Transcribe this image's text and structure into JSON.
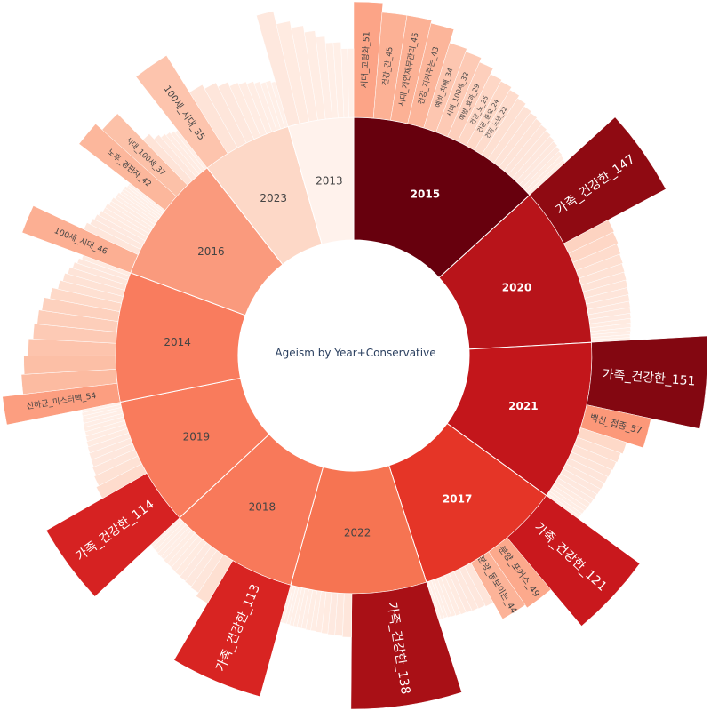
{
  "chart_data": {
    "type": "sunburst",
    "title": "Ageism by Year+Conservative",
    "colorscale": [
      "#fff5f0",
      "#fee0d2",
      "#fcbba1",
      "#fc9272",
      "#fb6a4a",
      "#ef3b2c",
      "#cb181d",
      "#a50f15",
      "#67000d"
    ],
    "years": [
      {
        "label": "2015",
        "value": 15.8,
        "color": "#67000d",
        "text_color": "#ffffff",
        "children": [
          {
            "label": "시대_고령화_51",
            "value": 51
          },
          {
            "label": "건강_간_45",
            "value": 45
          },
          {
            "label": "시대_개인재무관리_45",
            "value": 45
          },
          {
            "label": "건강_지켜주는_43",
            "value": 43
          },
          {
            "label": "예방_치매_34",
            "value": 34
          },
          {
            "label": "시대_100세_32",
            "value": 32
          },
          {
            "label": "예방_효과_29",
            "value": 29
          },
          {
            "label": "건강_노_25",
            "value": 25
          },
          {
            "label": "건강_중요_24",
            "value": 24
          },
          {
            "label": "건강_노년_22",
            "value": 22
          },
          {
            "label": "",
            "value": 20
          },
          {
            "label": "",
            "value": 18
          },
          {
            "label": "",
            "value": 17
          },
          {
            "label": "",
            "value": 16
          },
          {
            "label": "",
            "value": 15
          },
          {
            "label": "",
            "value": 14
          },
          {
            "label": "",
            "value": 13
          },
          {
            "label": "",
            "value": 12
          },
          {
            "label": "",
            "value": 11
          },
          {
            "label": "",
            "value": 10
          },
          {
            "label": "",
            "value": 9
          },
          {
            "label": "",
            "value": 8
          }
        ]
      },
      {
        "label": "2020",
        "value": 13.0,
        "color": "#b8141a",
        "text_color": "#ffffff",
        "children": [
          {
            "label": "가족_건강한_147",
            "value": 147
          },
          {
            "label": "",
            "value": 27
          },
          {
            "label": "",
            "value": 25
          },
          {
            "label": "",
            "value": 22
          },
          {
            "label": "",
            "value": 20
          },
          {
            "label": "",
            "value": 18
          },
          {
            "label": "",
            "value": 17
          },
          {
            "label": "",
            "value": 16
          },
          {
            "label": "",
            "value": 15
          },
          {
            "label": "",
            "value": 14
          },
          {
            "label": "",
            "value": 13
          },
          {
            "label": "",
            "value": 12
          },
          {
            "label": "",
            "value": 11
          },
          {
            "label": "",
            "value": 10
          },
          {
            "label": "",
            "value": 9
          },
          {
            "label": "",
            "value": 8
          },
          {
            "label": "",
            "value": 7
          },
          {
            "label": "",
            "value": 6
          },
          {
            "label": "",
            "value": 6
          }
        ]
      },
      {
        "label": "2021",
        "value": 13.0,
        "color": "#c3161b",
        "text_color": "#ffffff",
        "children": [
          {
            "label": "가족_건강한_151",
            "value": 151
          },
          {
            "label": "백신_접종_57",
            "value": 57
          },
          {
            "label": "",
            "value": 24
          },
          {
            "label": "",
            "value": 20
          },
          {
            "label": "",
            "value": 18
          },
          {
            "label": "",
            "value": 16
          },
          {
            "label": "",
            "value": 15
          },
          {
            "label": "",
            "value": 14
          },
          {
            "label": "",
            "value": 13
          },
          {
            "label": "",
            "value": 12
          },
          {
            "label": "",
            "value": 11
          },
          {
            "label": "",
            "value": 10
          },
          {
            "label": "",
            "value": 9
          },
          {
            "label": "",
            "value": 8
          },
          {
            "label": "",
            "value": 7
          },
          {
            "label": "",
            "value": 6
          }
        ]
      },
      {
        "label": "2017",
        "value": 12.0,
        "color": "#e53527",
        "text_color": "#ffffff",
        "children": [
          {
            "label": "가족_건강한_121",
            "value": 121
          },
          {
            "label": "분양_포커스_49",
            "value": 49
          },
          {
            "label": "분양_돋보이는_44",
            "value": 44
          },
          {
            "label": "",
            "value": 15
          },
          {
            "label": "",
            "value": 13
          },
          {
            "label": "",
            "value": 12
          },
          {
            "label": "",
            "value": 11
          },
          {
            "label": "",
            "value": 10
          },
          {
            "label": "",
            "value": 9
          },
          {
            "label": "",
            "value": 8
          },
          {
            "label": "",
            "value": 7
          },
          {
            "label": "",
            "value": 6
          },
          {
            "label": "",
            "value": 6
          },
          {
            "label": "",
            "value": 5
          }
        ]
      },
      {
        "label": "2022",
        "value": 11.0,
        "color": "#f67452",
        "text_color": "#444444",
        "children": [
          {
            "label": "가족_건강한_138",
            "value": 138
          },
          {
            "label": "",
            "value": 14
          },
          {
            "label": "",
            "value": 12
          },
          {
            "label": "",
            "value": 11
          },
          {
            "label": "",
            "value": 10
          },
          {
            "label": "",
            "value": 9
          },
          {
            "label": "",
            "value": 8
          },
          {
            "label": "",
            "value": 8
          },
          {
            "label": "",
            "value": 7
          },
          {
            "label": "",
            "value": 7
          },
          {
            "label": "",
            "value": 6
          },
          {
            "label": "",
            "value": 6
          },
          {
            "label": "",
            "value": 5
          },
          {
            "label": "",
            "value": 5
          },
          {
            "label": "",
            "value": 5
          }
        ]
      },
      {
        "label": "2018",
        "value": 10.5,
        "color": "#f8795a",
        "text_color": "#444444",
        "children": [
          {
            "label": "가족_건강한_113",
            "value": 113
          },
          {
            "label": "",
            "value": 20
          },
          {
            "label": "",
            "value": 14
          },
          {
            "label": "",
            "value": 12
          },
          {
            "label": "",
            "value": 11
          },
          {
            "label": "",
            "value": 10
          },
          {
            "label": "",
            "value": 9
          },
          {
            "label": "",
            "value": 8
          },
          {
            "label": "",
            "value": 8
          },
          {
            "label": "",
            "value": 7
          },
          {
            "label": "",
            "value": 7
          },
          {
            "label": "",
            "value": 6
          },
          {
            "label": "",
            "value": 6
          },
          {
            "label": "",
            "value": 5
          }
        ]
      },
      {
        "label": "2019",
        "value": 10.5,
        "color": "#f97b5c",
        "text_color": "#444444",
        "children": [
          {
            "label": "가족_건강한_114",
            "value": 114
          },
          {
            "label": "",
            "value": 22
          },
          {
            "label": "",
            "value": 18
          },
          {
            "label": "",
            "value": 15
          },
          {
            "label": "",
            "value": 13
          },
          {
            "label": "",
            "value": 12
          },
          {
            "label": "",
            "value": 11
          },
          {
            "label": "",
            "value": 10
          },
          {
            "label": "",
            "value": 9
          },
          {
            "label": "",
            "value": 8
          },
          {
            "label": "",
            "value": 8
          },
          {
            "label": "",
            "value": 7
          },
          {
            "label": "",
            "value": 7
          },
          {
            "label": "",
            "value": 6
          },
          {
            "label": "",
            "value": 6
          },
          {
            "label": "",
            "value": 5
          }
        ]
      },
      {
        "label": "2014",
        "value": 10.5,
        "color": "#f97c5e",
        "text_color": "#444444",
        "children": [
          {
            "label": "신하균_미스터백_54",
            "value": 54
          },
          {
            "label": "",
            "value": 40
          },
          {
            "label": "",
            "value": 38
          },
          {
            "label": "",
            "value": 35
          },
          {
            "label": "",
            "value": 32
          },
          {
            "label": "",
            "value": 30
          },
          {
            "label": "",
            "value": 28
          },
          {
            "label": "",
            "value": 24
          },
          {
            "label": "",
            "value": 20
          },
          {
            "label": "",
            "value": 18
          },
          {
            "label": "",
            "value": 16
          },
          {
            "label": "",
            "value": 14
          },
          {
            "label": "",
            "value": 12
          },
          {
            "label": "",
            "value": 10
          }
        ]
      },
      {
        "label": "2016",
        "value": 10.5,
        "color": "#fa9a7d",
        "text_color": "#444444",
        "children": [
          {
            "label": "100세_시대_46",
            "value": 46
          },
          {
            "label": "",
            "value": 14
          },
          {
            "label": "",
            "value": 12
          },
          {
            "label": "",
            "value": 11
          },
          {
            "label": "",
            "value": 10
          },
          {
            "label": "",
            "value": 9
          },
          {
            "label": "",
            "value": 9
          },
          {
            "label": "",
            "value": 8
          },
          {
            "label": "",
            "value": 8
          },
          {
            "label": "",
            "value": 7
          },
          {
            "label": "",
            "value": 7
          },
          {
            "label": "",
            "value": 6
          },
          {
            "label": "",
            "value": 6
          },
          {
            "label": "",
            "value": 6
          },
          {
            "label": "",
            "value": 5
          },
          {
            "label": "",
            "value": 5
          },
          {
            "label": "노후_경판자_42",
            "value": 42
          },
          {
            "label": "시대_100세_37",
            "value": 37
          },
          {
            "label": "",
            "value": 16
          },
          {
            "label": "",
            "value": 12
          },
          {
            "label": "",
            "value": 10
          },
          {
            "label": "",
            "value": 9
          },
          {
            "label": "",
            "value": 8
          },
          {
            "label": "",
            "value": 7
          }
        ]
      },
      {
        "label": "2023",
        "value": 7.3,
        "color": "#fdd8c7",
        "text_color": "#444444",
        "children": [
          {
            "label": "100세_시대_35",
            "value": 35
          },
          {
            "label": "",
            "value": 16
          },
          {
            "label": "",
            "value": 14
          },
          {
            "label": "",
            "value": 12
          },
          {
            "label": "",
            "value": 10
          },
          {
            "label": "",
            "value": 9
          },
          {
            "label": "",
            "value": 8
          },
          {
            "label": "",
            "value": 7
          },
          {
            "label": "",
            "value": 6
          },
          {
            "label": "",
            "value": 6
          },
          {
            "label": "",
            "value": 5
          }
        ]
      },
      {
        "label": "2013",
        "value": 5.3,
        "color": "#fff2ec",
        "text_color": "#444444",
        "children": [
          {
            "label": "",
            "value": 12
          },
          {
            "label": "",
            "value": 10
          },
          {
            "label": "",
            "value": 9
          },
          {
            "label": "",
            "value": 8
          },
          {
            "label": "",
            "value": 7
          },
          {
            "label": "",
            "value": 6
          },
          {
            "label": "",
            "value": 6
          },
          {
            "label": "",
            "value": 5
          },
          {
            "label": "",
            "value": 5
          }
        ]
      }
    ]
  }
}
